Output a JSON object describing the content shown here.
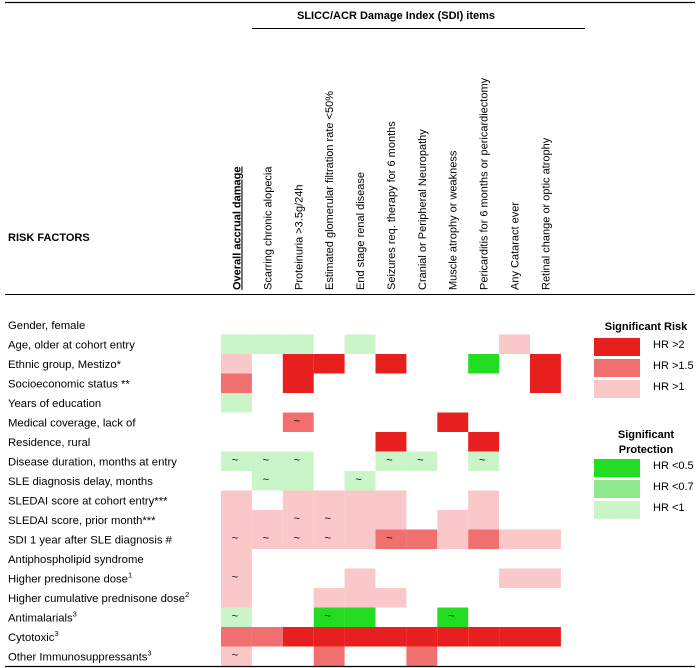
{
  "header": {
    "group_title": "SLICC/ACR Damage Index (SDI) items",
    "risk_factors_title": "RISK FACTORS"
  },
  "columns": [
    "Overall accrual damage",
    "Scarring chronic alopecia",
    "Proteinuria >3.5g/24h",
    "Estimated glomerular filtration rate <50%",
    "End stage renal disease",
    "Seizures req. therapy for 6 months",
    "Cranial or Peripheral Neuropathy",
    "Muscle atrophy or weakness",
    "Pericarditis for 6 months or pericardiectomy",
    "Any Cataract ever",
    "Retinal change or optic atrophy"
  ],
  "rows": [
    {
      "label": "Gender, female",
      "sup": ""
    },
    {
      "label": "Age, older at cohort entry",
      "sup": ""
    },
    {
      "label": "Ethnic group, Mestizo*",
      "sup": ""
    },
    {
      "label": "Socioeconomic status **",
      "sup": ""
    },
    {
      "label": "Years of education",
      "sup": ""
    },
    {
      "label": "Medical coverage, lack of",
      "sup": ""
    },
    {
      "label": "Residence, rural",
      "sup": ""
    },
    {
      "label": "Disease duration, months at entry",
      "sup": ""
    },
    {
      "label": "SLE diagnosis delay, months",
      "sup": ""
    },
    {
      "label": "SLEDAI score at cohort entry***",
      "sup": ""
    },
    {
      "label": "SLEDAI score, prior month***",
      "sup": ""
    },
    {
      "label": "SDI 1 year after SLE diagnosis #",
      "sup": ""
    },
    {
      "label": "Antiphospholipid syndrome",
      "sup": ""
    },
    {
      "label": "Higher prednisone dose",
      "sup": "1"
    },
    {
      "label": "Higher cumulative prednisone dose",
      "sup": "2"
    },
    {
      "label": "Antimalarials",
      "sup": "3"
    },
    {
      "label": "Cytotoxic",
      "sup": "3"
    },
    {
      "label": "Other Immunosuppressants",
      "sup": "3"
    }
  ],
  "colors": {
    "R2": "#e81f1f",
    "R15": "#f07070",
    "R1": "#fac8c8",
    "P05": "#22dd22",
    "P07": "#8ee88e",
    "P1": "#c9f5c9"
  },
  "cells": [
    [
      "",
      "",
      "",
      "",
      "",
      "",
      "",
      "",
      "",
      "",
      ""
    ],
    [
      "P1",
      "P1",
      "P1",
      "",
      "P1",
      "",
      "",
      "",
      "",
      "R1",
      ""
    ],
    [
      "R1",
      "",
      "R2",
      "R2",
      "",
      "R2",
      "",
      "",
      "P05",
      "",
      "R2"
    ],
    [
      "R15",
      "",
      "R2",
      "",
      "",
      "",
      "",
      "",
      "",
      "",
      "R2"
    ],
    [
      "P1",
      "",
      "",
      "",
      "",
      "",
      "",
      "",
      "",
      "",
      ""
    ],
    [
      "",
      "",
      "R15",
      "",
      "",
      "",
      "",
      "R2",
      "",
      "",
      ""
    ],
    [
      "",
      "",
      "",
      "",
      "",
      "R2",
      "",
      "",
      "R2",
      "",
      ""
    ],
    [
      "P1",
      "P1",
      "P1",
      "",
      "",
      "P1",
      "P1",
      "",
      "P1",
      "",
      ""
    ],
    [
      "",
      "P1",
      "P1",
      "",
      "P1",
      "",
      "",
      "",
      "",
      "",
      ""
    ],
    [
      "R1",
      "",
      "R1",
      "R1",
      "R1",
      "R1",
      "",
      "",
      "R1",
      "",
      ""
    ],
    [
      "R1",
      "R1",
      "R1",
      "R1",
      "R1",
      "R1",
      "",
      "R1",
      "R1",
      "",
      ""
    ],
    [
      "R1",
      "R1",
      "R1",
      "R1",
      "R1",
      "R15",
      "R15",
      "R1",
      "R15",
      "R1",
      "R1"
    ],
    [
      "R1",
      "",
      "",
      "",
      "",
      "",
      "",
      "",
      "",
      "",
      ""
    ],
    [
      "R1",
      "",
      "",
      "",
      "R1",
      "",
      "",
      "",
      "",
      "R1",
      "R1"
    ],
    [
      "R1",
      "",
      "",
      "R1",
      "R1",
      "R1",
      "",
      "",
      "",
      "",
      ""
    ],
    [
      "P1",
      "",
      "",
      "P05",
      "P05",
      "",
      "",
      "P05",
      "",
      "",
      ""
    ],
    [
      "R15",
      "R15",
      "R2",
      "R2",
      "R2",
      "R2",
      "R2",
      "R2",
      "R2",
      "R2",
      "R2"
    ],
    [
      "R1",
      "",
      "",
      "R15",
      "",
      "",
      "R15",
      "",
      "",
      "",
      ""
    ]
  ],
  "tildes": [
    [
      7,
      0
    ],
    [
      7,
      1
    ],
    [
      7,
      2
    ],
    [
      7,
      5
    ],
    [
      7,
      6
    ],
    [
      7,
      8
    ],
    [
      8,
      1
    ],
    [
      8,
      4
    ],
    [
      10,
      2
    ],
    [
      10,
      3
    ],
    [
      11,
      0
    ],
    [
      11,
      1
    ],
    [
      11,
      2
    ],
    [
      11,
      3
    ],
    [
      11,
      5
    ],
    [
      5,
      2
    ],
    [
      13,
      0
    ],
    [
      15,
      0
    ],
    [
      15,
      3
    ],
    [
      15,
      7
    ],
    [
      17,
      0
    ]
  ],
  "legend": {
    "risk_title": "Significant Risk",
    "risk_items": [
      {
        "key": "R2",
        "label": "HR >2"
      },
      {
        "key": "R15",
        "label": "HR >1.5"
      },
      {
        "key": "R1",
        "label": "HR >1"
      }
    ],
    "protect_title_1": "Significant",
    "protect_title_2": "Protection",
    "protect_items": [
      {
        "key": "P05",
        "label": "HR <0.5"
      },
      {
        "key": "P07",
        "label": "HR <0.7"
      },
      {
        "key": "P1",
        "label": "HR <1"
      }
    ]
  }
}
